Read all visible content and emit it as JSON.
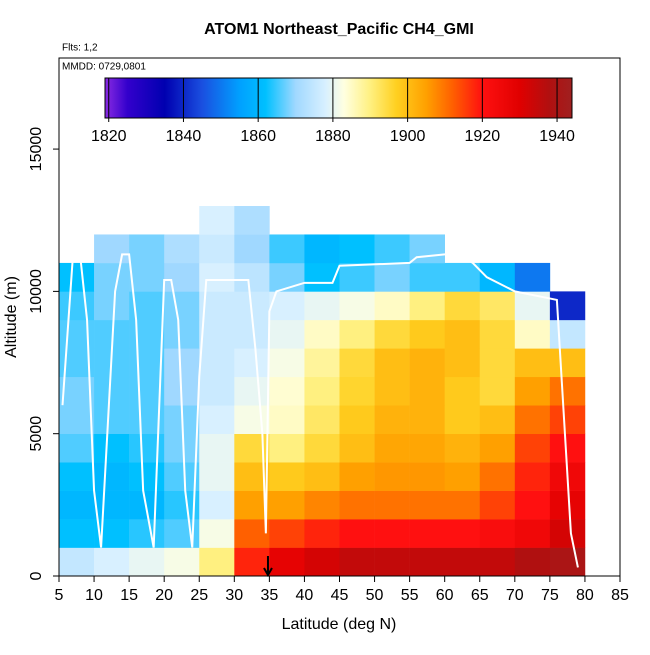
{
  "chart_data": {
    "type": "heatmap",
    "title": "ATOM1 Northeast_Pacific CH4_GMI",
    "subtitle": "Flts: 1,2",
    "annotation": "MMDD: 0729,0801",
    "x_label": "Latitude (deg N)",
    "y_label": "Altitude (m)",
    "xlim": [
      5,
      85
    ],
    "ylim": [
      0,
      18200
    ],
    "xticks": [
      5,
      10,
      15,
      20,
      25,
      30,
      35,
      40,
      45,
      50,
      55,
      60,
      65,
      70,
      75,
      80,
      85
    ],
    "yticks": [
      0,
      5000,
      10000,
      15000
    ],
    "x_edges": [
      5,
      10,
      15,
      20,
      25,
      30,
      35,
      40,
      45,
      50,
      55,
      60,
      65,
      70,
      75,
      80
    ],
    "y_edges": [
      0,
      1000,
      2000,
      3000,
      4000,
      5000,
      6000,
      7000,
      8000,
      9000,
      10000,
      11000,
      12000,
      13000
    ],
    "values": [
      [
        1875,
        1878,
        1880,
        1882,
        1890,
        1918,
        1928,
        1932,
        1935,
        1935,
        1935,
        1935,
        1935,
        1938,
        1940
      ],
      [
        1862,
        1862,
        1864,
        1866,
        1882,
        1912,
        1915,
        1918,
        1920,
        1920,
        1920,
        1920,
        1922,
        1925,
        1932
      ],
      [
        1860,
        1860,
        1860,
        1864,
        1878,
        1905,
        1905,
        1908,
        1910,
        1910,
        1910,
        1910,
        1915,
        1920,
        1928
      ],
      [
        1862,
        1860,
        1862,
        1866,
        1880,
        1900,
        1898,
        1900,
        1905,
        1906,
        1906,
        1905,
        1910,
        1918,
        1925
      ],
      [
        1866,
        1862,
        1864,
        1868,
        1880,
        1895,
        1890,
        1895,
        1900,
        1904,
        1904,
        1902,
        1905,
        1915,
        1920
      ],
      [
        1868,
        1866,
        1866,
        1868,
        1878,
        1882,
        1885,
        1892,
        1898,
        1902,
        1902,
        1898,
        1900,
        1910,
        1915
      ],
      [
        1868,
        1866,
        1866,
        1870,
        1876,
        1880,
        1884,
        1890,
        1896,
        1900,
        1902,
        1898,
        1895,
        1905,
        1910
      ],
      [
        1866,
        1866,
        1866,
        1870,
        1876,
        1878,
        1882,
        1888,
        1895,
        1900,
        1902,
        1900,
        1895,
        1900,
        1900
      ],
      [
        1866,
        1866,
        1866,
        1868,
        1876,
        1876,
        1880,
        1885,
        1890,
        1895,
        1898,
        1900,
        1895,
        1885,
        1875
      ],
      [
        1865,
        1868,
        1866,
        1868,
        1876,
        1876,
        1878,
        1880,
        1882,
        1885,
        1890,
        1895,
        1892,
        1880,
        1840
      ],
      [
        1862,
        1868,
        1868,
        1870,
        1878,
        1874,
        1868,
        1862,
        1865,
        1868,
        1865,
        1865,
        1860,
        1850,
        null
      ],
      [
        null,
        1870,
        1868,
        1872,
        1876,
        1870,
        1865,
        1860,
        1862,
        1865,
        1868,
        null,
        null,
        null,
        null
      ],
      [
        null,
        null,
        null,
        null,
        1878,
        1872,
        null,
        null,
        null,
        null,
        null,
        null,
        null,
        null,
        null
      ]
    ],
    "colorbar": {
      "lim": [
        1819,
        1944
      ],
      "ticks": [
        1820,
        1840,
        1860,
        1880,
        1900,
        1920,
        1940
      ]
    },
    "colorscale": {
      "values": [
        1815,
        1825,
        1835,
        1845,
        1855,
        1862,
        1870,
        1878,
        1883,
        1890,
        1897,
        1905,
        1912,
        1920,
        1930,
        1938,
        1944
      ],
      "colors": [
        "#8a2be2",
        "#3300cc",
        "#0000b0",
        "#1a4fe0",
        "#00a0ff",
        "#00c0ff",
        "#a0d8ff",
        "#d8f0ff",
        "#ffffe0",
        "#fff080",
        "#ffd020",
        "#ffa000",
        "#ff6000",
        "#ff1010",
        "#e00000",
        "#b01010",
        "#a02020"
      ]
    },
    "track": {
      "color": "#ffffff",
      "x": [
        5.5,
        7,
        8,
        9,
        10,
        11,
        13,
        14,
        15,
        16,
        17,
        18.5,
        20,
        21,
        22,
        23,
        24,
        25,
        26,
        27,
        28,
        29,
        30,
        31,
        32,
        33,
        34,
        34.5,
        35,
        36,
        40,
        44,
        45,
        55,
        56,
        60,
        62,
        64,
        66,
        70,
        74,
        76,
        78,
        79
      ],
      "y": [
        6000,
        11300,
        11300,
        9000,
        3000,
        1000,
        10000,
        11300,
        11300,
        9000,
        3000,
        1000,
        10400,
        10400,
        9000,
        3000,
        1000,
        7000,
        10400,
        10400,
        10400,
        10400,
        10400,
        10400,
        10400,
        8000,
        5000,
        1500,
        9300,
        10000,
        10300,
        10300,
        10900,
        11000,
        11200,
        11300,
        11300,
        11000,
        10500,
        10000,
        9800,
        9700,
        1500,
        300
      ]
    },
    "arrow_x": 34.8
  }
}
